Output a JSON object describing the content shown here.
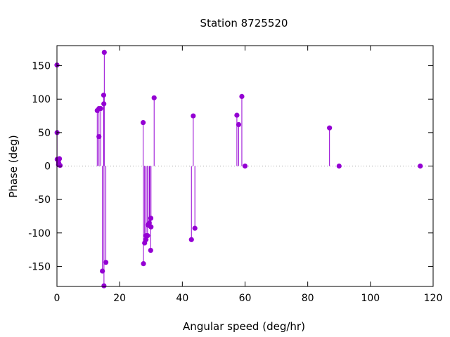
{
  "chart_data": {
    "type": "scatter",
    "style": "impulses-with-points",
    "title": "Station 8725520",
    "xlabel": "Angular speed (deg/hr)",
    "ylabel": "Phase (deg)",
    "xlim": [
      0,
      120
    ],
    "ylim": [
      -180,
      180
    ],
    "xticks": [
      0,
      20,
      40,
      60,
      80,
      100,
      120
    ],
    "yticks": [
      -150,
      -100,
      -50,
      0,
      50,
      100,
      150
    ],
    "xtick_labels": [
      "0",
      "20",
      "40",
      "60",
      "80",
      "100",
      "120"
    ],
    "ytick_labels": [
      "-150",
      "-100",
      "-50",
      "0",
      "50",
      "100",
      "150"
    ],
    "grid": false,
    "zero_line": "dotted",
    "color": "#9400d3",
    "points": [
      {
        "x": 0.0,
        "y": 151
      },
      {
        "x": 0.04,
        "y": 50
      },
      {
        "x": 0.08,
        "y": 10
      },
      {
        "x": 0.5,
        "y": 2
      },
      {
        "x": 0.55,
        "y": 5
      },
      {
        "x": 0.8,
        "y": 11
      },
      {
        "x": 1.0,
        "y": 1
      },
      {
        "x": 12.85,
        "y": 83
      },
      {
        "x": 13.4,
        "y": 86
      },
      {
        "x": 13.4,
        "y": 44
      },
      {
        "x": 13.94,
        "y": 86
      },
      {
        "x": 14.5,
        "y": -157
      },
      {
        "x": 14.9,
        "y": 106
      },
      {
        "x": 14.96,
        "y": 93
      },
      {
        "x": 15.0,
        "y": -179
      },
      {
        "x": 15.1,
        "y": 170
      },
      {
        "x": 15.6,
        "y": -144
      },
      {
        "x": 27.5,
        "y": 65
      },
      {
        "x": 27.6,
        "y": -146
      },
      {
        "x": 27.97,
        "y": -115
      },
      {
        "x": 28.4,
        "y": -110
      },
      {
        "x": 28.44,
        "y": -104
      },
      {
        "x": 28.9,
        "y": -104
      },
      {
        "x": 29.0,
        "y": -88
      },
      {
        "x": 29.46,
        "y": -85
      },
      {
        "x": 29.5,
        "y": -89
      },
      {
        "x": 29.9,
        "y": -126
      },
      {
        "x": 29.95,
        "y": -78
      },
      {
        "x": 30.0,
        "y": -91
      },
      {
        "x": 31.0,
        "y": 102
      },
      {
        "x": 42.9,
        "y": -110
      },
      {
        "x": 43.48,
        "y": 75
      },
      {
        "x": 44.0,
        "y": -93
      },
      {
        "x": 57.4,
        "y": 76
      },
      {
        "x": 57.97,
        "y": 62
      },
      {
        "x": 58.98,
        "y": 104
      },
      {
        "x": 60.0,
        "y": 0
      },
      {
        "x": 86.95,
        "y": 57
      },
      {
        "x": 90.0,
        "y": 0
      },
      {
        "x": 115.9,
        "y": 0
      }
    ]
  }
}
